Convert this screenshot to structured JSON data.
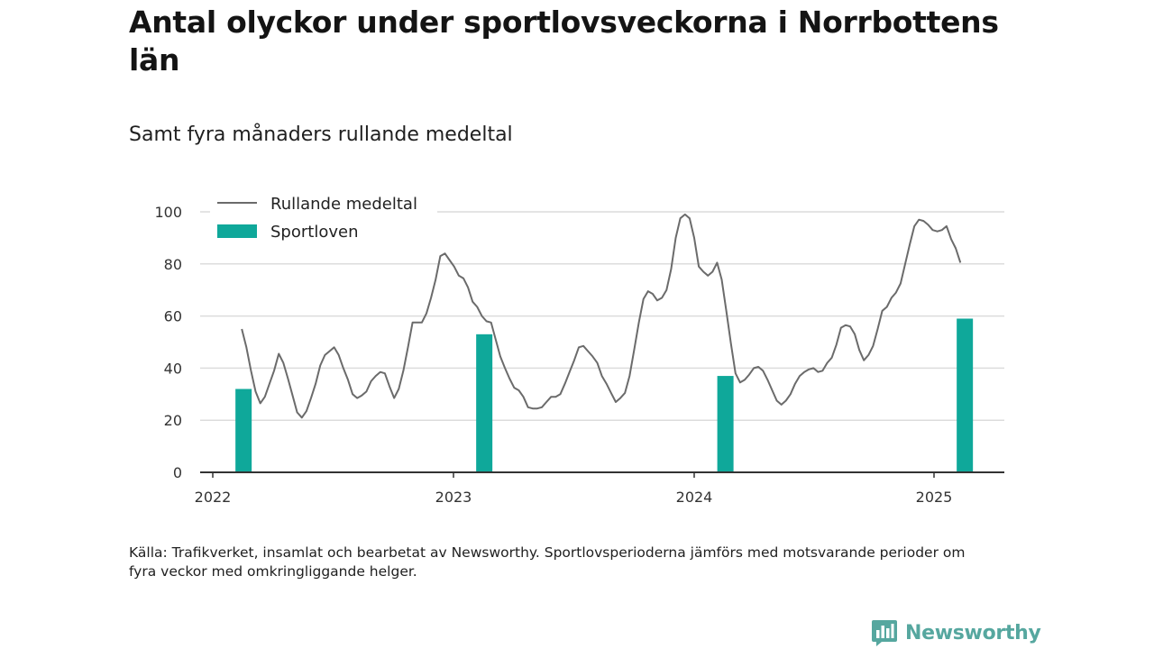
{
  "title": "Antal olyckor under sportlovsveckorna i Norrbottens län",
  "subtitle": "Samt fyra månaders rullande medeltal",
  "footnote": "Källa: Trafikverket, insamlat och bearbetat av Newsworthy. Sportlovsperioderna jämförs med motsvarande perioder om fyra veckor med omkringliggande helger.",
  "logo": {
    "text": "Newsworthy",
    "icon": "newsworthy-bar-chart-icon",
    "color": "#56a79f"
  },
  "colors": {
    "line": "#6b6b6b",
    "bar": "#0fa89a",
    "grid": "#dcdcdc",
    "axis": "#333333"
  },
  "chart_data": {
    "type": "bar+line",
    "title": "Antal olyckor under sportlovsveckorna i Norrbottens län",
    "subtitle": "Samt fyra månaders rullande medeltal",
    "xlabel": "",
    "ylabel": "",
    "ylim": [
      0,
      100
    ],
    "yticks": [
      0,
      20,
      40,
      60,
      80,
      100
    ],
    "xticks": [
      "2022",
      "2023",
      "2024",
      "2025"
    ],
    "grid": "horizontal",
    "legend_position": "top-left",
    "legend": [
      "Rullande medeltal",
      "Sportloven"
    ],
    "series": [
      {
        "name": "Sportloven",
        "type": "bar",
        "x": [
          "2022-03",
          "2023-03",
          "2024-03",
          "2025-03"
        ],
        "values": [
          32,
          53,
          37,
          59
        ]
      },
      {
        "name": "Rullande medeltal",
        "type": "line",
        "x_start": "2022-02-14",
        "interval": "weekly",
        "values": [
          55,
          48,
          39,
          31,
          26.5,
          29,
          34,
          39,
          45.5,
          42,
          36,
          29.5,
          23,
          21,
          23.5,
          28.5,
          34,
          41,
          45,
          46.5,
          48,
          45,
          40,
          35.5,
          30,
          28.5,
          29.5,
          31,
          35,
          37,
          38.5,
          38,
          33,
          28.5,
          32,
          39,
          48,
          57.5,
          57.5,
          57.5,
          61,
          67,
          74,
          83,
          84,
          81.5,
          79,
          75.5,
          74.5,
          71,
          65.5,
          63.5,
          60,
          58,
          57.5,
          51,
          44.5,
          40,
          36,
          32.5,
          31.5,
          29,
          25,
          24.5,
          24.5,
          25,
          27,
          29,
          29,
          30,
          34,
          38.5,
          43,
          48,
          48.5,
          46.5,
          44.5,
          42,
          37,
          34,
          30.5,
          27,
          28.5,
          30.5,
          37,
          47,
          57.5,
          66.5,
          69.5,
          68.5,
          66,
          67,
          70,
          78,
          90,
          97.5,
          99,
          97.5,
          90,
          79,
          77,
          75.5,
          77,
          80.5,
          74,
          62,
          49.5,
          38,
          34.5,
          35.5,
          37.5,
          40,
          40.5,
          39,
          35.5,
          31.5,
          27.5,
          26,
          27.5,
          30,
          34,
          37,
          38.5,
          39.5,
          40,
          38.5,
          39,
          42,
          44,
          49,
          55.5,
          56.5,
          56,
          53,
          47,
          43,
          45,
          48.5,
          55,
          62,
          63.5,
          67,
          69,
          72.5,
          80,
          87.5,
          94.5,
          97,
          96.5,
          95,
          93,
          92.5,
          93,
          94.5,
          89.5,
          86,
          80.5
        ]
      }
    ]
  }
}
